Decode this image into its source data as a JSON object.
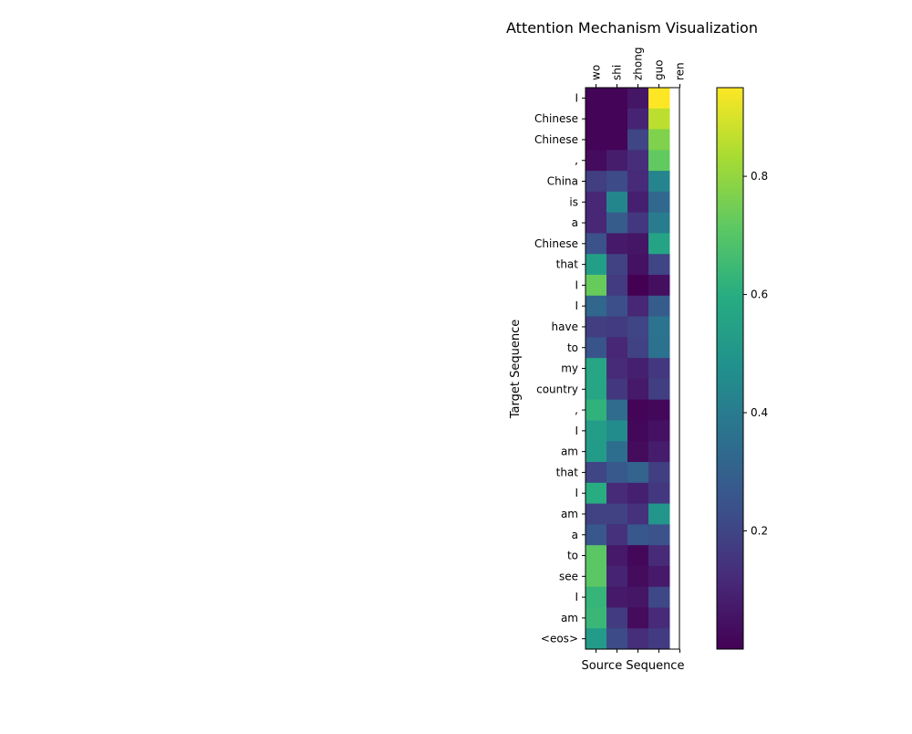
{
  "chart_data": {
    "type": "heatmap",
    "title": "Attention Mechanism Visualization",
    "xlabel": "Source Sequence",
    "ylabel": "Target Sequence",
    "x_categories": [
      "wo",
      "shi",
      "zhong",
      "guo",
      "ren"
    ],
    "y_categories": [
      "I",
      "Chinese",
      "Chinese",
      ",",
      "China",
      "is",
      "a",
      "Chinese",
      "that",
      "I",
      "I",
      "have",
      "to",
      "my",
      "country",
      ",",
      "I",
      "am",
      "that",
      "I",
      "am",
      "a",
      "to",
      "see",
      "I",
      "am",
      "<eos>"
    ],
    "values": [
      [
        0.01,
        0.01,
        0.06,
        0.95,
        null
      ],
      [
        0.01,
        0.01,
        0.1,
        0.86,
        null
      ],
      [
        0.01,
        0.01,
        0.2,
        0.77,
        null
      ],
      [
        0.03,
        0.08,
        0.13,
        0.72,
        null
      ],
      [
        0.18,
        0.22,
        0.12,
        0.43,
        null
      ],
      [
        0.11,
        0.44,
        0.09,
        0.33,
        null
      ],
      [
        0.11,
        0.28,
        0.16,
        0.4,
        null
      ],
      [
        0.24,
        0.07,
        0.06,
        0.56,
        null
      ],
      [
        0.54,
        0.19,
        0.05,
        0.2,
        null
      ],
      [
        0.73,
        0.17,
        0.0,
        0.04,
        null
      ],
      [
        0.32,
        0.23,
        0.11,
        0.28,
        null
      ],
      [
        0.18,
        0.17,
        0.2,
        0.37,
        null
      ],
      [
        0.25,
        0.11,
        0.19,
        0.36,
        null
      ],
      [
        0.57,
        0.12,
        0.09,
        0.16,
        null
      ],
      [
        0.57,
        0.16,
        0.07,
        0.18,
        null
      ],
      [
        0.62,
        0.34,
        0.01,
        0.02,
        null
      ],
      [
        0.53,
        0.46,
        0.02,
        0.05,
        null
      ],
      [
        0.52,
        0.35,
        0.03,
        0.08,
        null
      ],
      [
        0.2,
        0.27,
        0.31,
        0.18,
        null
      ],
      [
        0.6,
        0.12,
        0.09,
        0.16,
        null
      ],
      [
        0.19,
        0.19,
        0.14,
        0.5,
        null
      ],
      [
        0.26,
        0.14,
        0.26,
        0.24,
        null
      ],
      [
        0.71,
        0.07,
        0.02,
        0.12,
        null
      ],
      [
        0.71,
        0.1,
        0.03,
        0.07,
        null
      ],
      [
        0.63,
        0.07,
        0.06,
        0.21,
        null
      ],
      [
        0.64,
        0.17,
        0.03,
        0.12,
        null
      ],
      [
        0.52,
        0.22,
        0.13,
        0.17,
        null
      ]
    ],
    "colormap": "viridis",
    "colorbar": {
      "range": [
        0.0,
        0.95
      ],
      "ticks": [
        0.2,
        0.4,
        0.6,
        0.8
      ],
      "tick_labels": [
        "0.2",
        "0.4",
        "0.6",
        "0.8"
      ]
    },
    "grid": false,
    "legend": "none"
  }
}
